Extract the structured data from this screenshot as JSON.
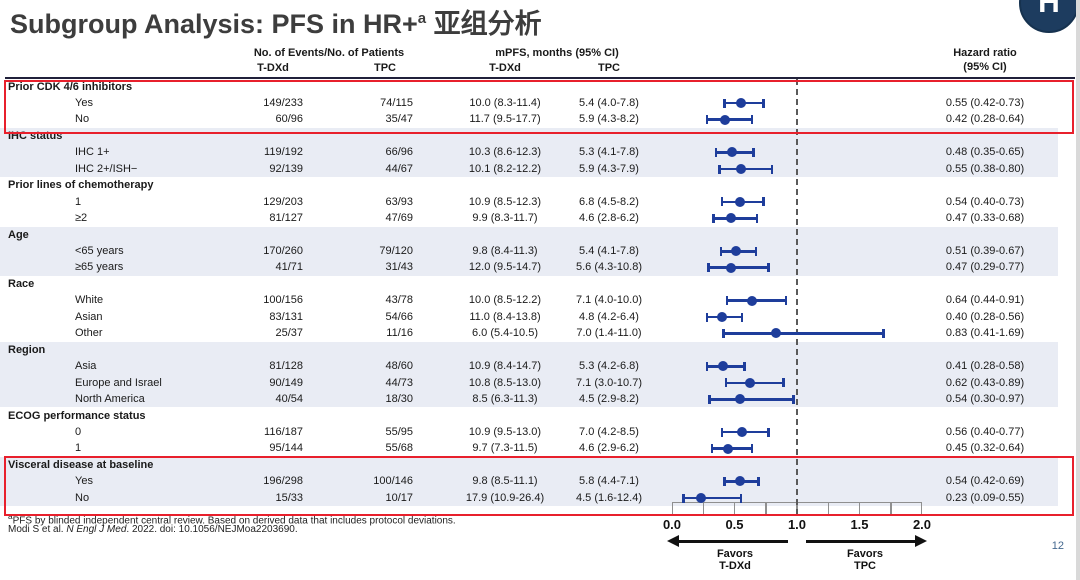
{
  "title": {
    "text": "Subgroup Analysis: PFS in HR+",
    "superscript": "a",
    "suffix": " 亚组分析"
  },
  "logo": {
    "glyph": "H"
  },
  "header": {
    "events_group": "No. of Events/No. of Patients",
    "mpfs_group": "mPFS, months (95% CI)",
    "col_tdxd": "T-DXd",
    "col_tpc": "TPC",
    "hr_line1": "Hazard ratio",
    "hr_line2": "(95% CI)"
  },
  "table": {
    "sections": [
      {
        "label": "Prior CDK 4/6 inhibitors",
        "highlighted": true,
        "rows": [
          {
            "label": "Yes",
            "events_tdxd": "149/233",
            "events_tpc": "74/115",
            "mpfs_tdxd": "10.0 (8.3-11.4)",
            "mpfs_tpc": "5.4 (4.0-7.8)",
            "hr_text": "0.55 (0.42-0.73)",
            "hr": 0.55,
            "lo": 0.42,
            "hi": 0.73
          },
          {
            "label": "No",
            "events_tdxd": "60/96",
            "events_tpc": "35/47",
            "mpfs_tdxd": "11.7 (9.5-17.7)",
            "mpfs_tpc": "5.9 (4.3-8.2)",
            "hr_text": "0.42 (0.28-0.64)",
            "hr": 0.42,
            "lo": 0.28,
            "hi": 0.64
          }
        ]
      },
      {
        "label": "IHC status",
        "highlighted": false,
        "rows": [
          {
            "label": "IHC 1+",
            "events_tdxd": "119/192",
            "events_tpc": "66/96",
            "mpfs_tdxd": "10.3 (8.6-12.3)",
            "mpfs_tpc": "5.3 (4.1-7.8)",
            "hr_text": "0.48 (0.35-0.65)",
            "hr": 0.48,
            "lo": 0.35,
            "hi": 0.65
          },
          {
            "label": "IHC 2+/ISH−",
            "events_tdxd": "92/139",
            "events_tpc": "44/67",
            "mpfs_tdxd": "10.1 (8.2-12.2)",
            "mpfs_tpc": "5.9 (4.3-7.9)",
            "hr_text": "0.55 (0.38-0.80)",
            "hr": 0.55,
            "lo": 0.38,
            "hi": 0.8
          }
        ]
      },
      {
        "label": "Prior lines of chemotherapy",
        "highlighted": false,
        "rows": [
          {
            "label": "1",
            "events_tdxd": "129/203",
            "events_tpc": "63/93",
            "mpfs_tdxd": "10.9 (8.5-12.3)",
            "mpfs_tpc": "6.8 (4.5-8.2)",
            "hr_text": "0.54 (0.40-0.73)",
            "hr": 0.54,
            "lo": 0.4,
            "hi": 0.73
          },
          {
            "label": "≥2",
            "events_tdxd": "81/127",
            "events_tpc": "47/69",
            "mpfs_tdxd": "9.9 (8.3-11.7)",
            "mpfs_tpc": "4.6 (2.8-6.2)",
            "hr_text": "0.47 (0.33-0.68)",
            "hr": 0.47,
            "lo": 0.33,
            "hi": 0.68
          }
        ]
      },
      {
        "label": "Age",
        "highlighted": false,
        "rows": [
          {
            "label": "<65 years",
            "events_tdxd": "170/260",
            "events_tpc": "79/120",
            "mpfs_tdxd": "9.8 (8.4-11.3)",
            "mpfs_tpc": "5.4 (4.1-7.8)",
            "hr_text": "0.51 (0.39-0.67)",
            "hr": 0.51,
            "lo": 0.39,
            "hi": 0.67
          },
          {
            "label": "≥65 years",
            "events_tdxd": "41/71",
            "events_tpc": "31/43",
            "mpfs_tdxd": "12.0 (9.5-14.7)",
            "mpfs_tpc": "5.6 (4.3-10.8)",
            "hr_text": "0.47 (0.29-0.77)",
            "hr": 0.47,
            "lo": 0.29,
            "hi": 0.77
          }
        ]
      },
      {
        "label": "Race",
        "highlighted": false,
        "rows": [
          {
            "label": "White",
            "events_tdxd": "100/156",
            "events_tpc": "43/78",
            "mpfs_tdxd": "10.0 (8.5-12.2)",
            "mpfs_tpc": "7.1 (4.0-10.0)",
            "hr_text": "0.64 (0.44-0.91)",
            "hr": 0.64,
            "lo": 0.44,
            "hi": 0.91
          },
          {
            "label": "Asian",
            "events_tdxd": "83/131",
            "events_tpc": "54/66",
            "mpfs_tdxd": "11.0 (8.4-13.8)",
            "mpfs_tpc": "4.8 (4.2-6.4)",
            "hr_text": "0.40 (0.28-0.56)",
            "hr": 0.4,
            "lo": 0.28,
            "hi": 0.56
          },
          {
            "label": "Other",
            "events_tdxd": "25/37",
            "events_tpc": "11/16",
            "mpfs_tdxd": "6.0 (5.4-10.5)",
            "mpfs_tpc": "7.0 (1.4-11.0)",
            "hr_text": "0.83 (0.41-1.69)",
            "hr": 0.83,
            "lo": 0.41,
            "hi": 1.69
          }
        ]
      },
      {
        "label": "Region",
        "highlighted": false,
        "rows": [
          {
            "label": "Asia",
            "events_tdxd": "81/128",
            "events_tpc": "48/60",
            "mpfs_tdxd": "10.9 (8.4-14.7)",
            "mpfs_tpc": "5.3 (4.2-6.8)",
            "hr_text": "0.41 (0.28-0.58)",
            "hr": 0.41,
            "lo": 0.28,
            "hi": 0.58
          },
          {
            "label": "Europe and Israel",
            "events_tdxd": "90/149",
            "events_tpc": "44/73",
            "mpfs_tdxd": "10.8 (8.5-13.0)",
            "mpfs_tpc": "7.1 (3.0-10.7)",
            "hr_text": "0.62 (0.43-0.89)",
            "hr": 0.62,
            "lo": 0.43,
            "hi": 0.89
          },
          {
            "label": "North America",
            "events_tdxd": "40/54",
            "events_tpc": "18/30",
            "mpfs_tdxd": "8.5 (6.3-11.3)",
            "mpfs_tpc": "4.5 (2.9-8.2)",
            "hr_text": "0.54 (0.30-0.97)",
            "hr": 0.54,
            "lo": 0.3,
            "hi": 0.97
          }
        ]
      },
      {
        "label": "ECOG performance status",
        "highlighted": false,
        "rows": [
          {
            "label": "0",
            "events_tdxd": "116/187",
            "events_tpc": "55/95",
            "mpfs_tdxd": "10.9 (9.5-13.0)",
            "mpfs_tpc": "7.0 (4.2-8.5)",
            "hr_text": "0.56 (0.40-0.77)",
            "hr": 0.56,
            "lo": 0.4,
            "hi": 0.77
          },
          {
            "label": "1",
            "events_tdxd": "95/144",
            "events_tpc": "55/68",
            "mpfs_tdxd": "9.7 (7.3-11.5)",
            "mpfs_tpc": "4.6 (2.9-6.2)",
            "hr_text": "0.45 (0.32-0.64)",
            "hr": 0.45,
            "lo": 0.32,
            "hi": 0.64
          }
        ]
      },
      {
        "label": "Visceral disease at baseline",
        "highlighted": true,
        "rows": [
          {
            "label": "Yes",
            "events_tdxd": "196/298",
            "events_tpc": "100/146",
            "mpfs_tdxd": "9.8 (8.5-11.1)",
            "mpfs_tpc": "5.8 (4.4-7.1)",
            "hr_text": "0.54 (0.42-0.69)",
            "hr": 0.54,
            "lo": 0.42,
            "hi": 0.69
          },
          {
            "label": "No",
            "events_tdxd": "15/33",
            "events_tpc": "10/17",
            "mpfs_tdxd": "17.9 (10.9-26.4)",
            "mpfs_tpc": "4.5 (1.6-12.4)",
            "hr_text": "0.23 (0.09-0.55)",
            "hr": 0.23,
            "lo": 0.09,
            "hi": 0.55
          }
        ]
      }
    ]
  },
  "axis": {
    "tick_labels": [
      "0.0",
      "0.5",
      "1.0",
      "1.5",
      "2.0"
    ],
    "favors_left_1": "Favors",
    "favors_left_2": "T-DXd",
    "favors_right_1": "Favors",
    "favors_right_2": "TPC"
  },
  "footnotes": {
    "sup": "a",
    "line1": "PFS by blinded independent central review. Based on derived data that includes protocol deviations.",
    "cite_prefix": "Modi S et al. ",
    "cite_italic": "N Engl J Med",
    "cite_suffix": ". 2022. doi: 10.1056/NEJMoa2203690."
  },
  "page_number": "12",
  "colors": {
    "marker": "#1e3d9b",
    "highlight": "#e8202c",
    "shade": "#e9ecf4",
    "logo_navy": "#1d3c5f"
  },
  "chart_data": {
    "type": "scatter",
    "subtype": "forest-plot",
    "title": "Subgroup Analysis: PFS in HR+a 亚组分析",
    "xlabel": "Hazard ratio (95% CI)",
    "xlim": [
      0,
      2
    ],
    "x_ticks": [
      0.0,
      0.5,
      1.0,
      1.5,
      2.0
    ],
    "reference_line": 1.0,
    "grid": false,
    "legend_position": "none",
    "annotations": [
      "Favors T-DXd (left of 1.0)",
      "Favors TPC (right of 1.0)"
    ],
    "series": [
      {
        "name": "Hazard ratio (95% CI)",
        "points": [
          {
            "subgroup": "Prior CDK 4/6 inhibitors — Yes",
            "hr": 0.55,
            "ci": [
              0.42,
              0.73
            ]
          },
          {
            "subgroup": "Prior CDK 4/6 inhibitors — No",
            "hr": 0.42,
            "ci": [
              0.28,
              0.64
            ]
          },
          {
            "subgroup": "IHC status — IHC 1+",
            "hr": 0.48,
            "ci": [
              0.35,
              0.65
            ]
          },
          {
            "subgroup": "IHC status — IHC 2+/ISH−",
            "hr": 0.55,
            "ci": [
              0.38,
              0.8
            ]
          },
          {
            "subgroup": "Prior lines of chemotherapy — 1",
            "hr": 0.54,
            "ci": [
              0.4,
              0.73
            ]
          },
          {
            "subgroup": "Prior lines of chemotherapy — ≥2",
            "hr": 0.47,
            "ci": [
              0.33,
              0.68
            ]
          },
          {
            "subgroup": "Age — <65 years",
            "hr": 0.51,
            "ci": [
              0.39,
              0.67
            ]
          },
          {
            "subgroup": "Age — ≥65 years",
            "hr": 0.47,
            "ci": [
              0.29,
              0.77
            ]
          },
          {
            "subgroup": "Race — White",
            "hr": 0.64,
            "ci": [
              0.44,
              0.91
            ]
          },
          {
            "subgroup": "Race — Asian",
            "hr": 0.4,
            "ci": [
              0.28,
              0.56
            ]
          },
          {
            "subgroup": "Race — Other",
            "hr": 0.83,
            "ci": [
              0.41,
              1.69
            ]
          },
          {
            "subgroup": "Region — Asia",
            "hr": 0.41,
            "ci": [
              0.28,
              0.58
            ]
          },
          {
            "subgroup": "Region — Europe and Israel",
            "hr": 0.62,
            "ci": [
              0.43,
              0.89
            ]
          },
          {
            "subgroup": "Region — North America",
            "hr": 0.54,
            "ci": [
              0.3,
              0.97
            ]
          },
          {
            "subgroup": "ECOG performance status — 0",
            "hr": 0.56,
            "ci": [
              0.4,
              0.77
            ]
          },
          {
            "subgroup": "ECOG performance status — 1",
            "hr": 0.45,
            "ci": [
              0.32,
              0.64
            ]
          },
          {
            "subgroup": "Visceral disease at baseline — Yes",
            "hr": 0.54,
            "ci": [
              0.42,
              0.69
            ]
          },
          {
            "subgroup": "Visceral disease at baseline — No",
            "hr": 0.23,
            "ci": [
              0.09,
              0.55
            ]
          }
        ]
      }
    ]
  }
}
